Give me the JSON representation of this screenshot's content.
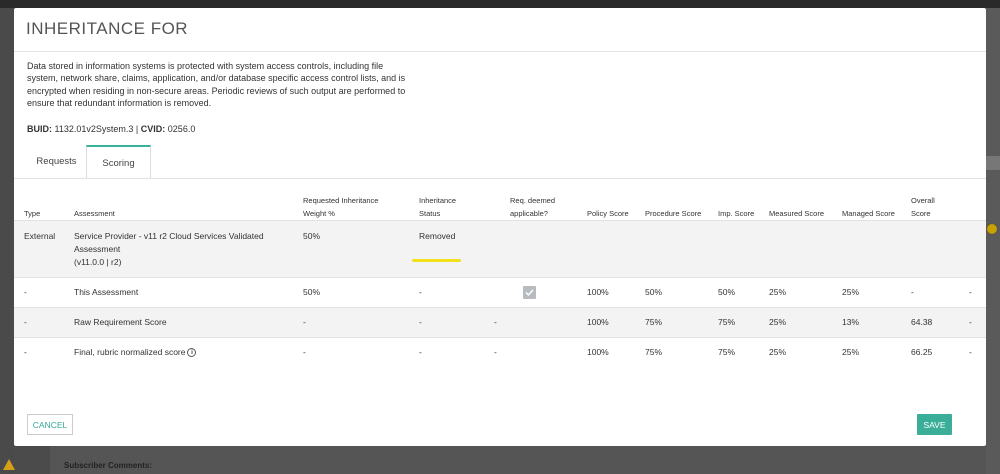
{
  "modal": {
    "title": "INHERITANCE FOR",
    "description": "Data stored in information systems is protected with system access controls, including file system, network share, claims, application, and/or database specific access control lists, and is encrypted when residing in non-secure areas. Periodic reviews of such output are performed to ensure that redundant information is removed.",
    "buid_label": "BUID:",
    "buid_value": "1132.01v2System.3",
    "separator": "|",
    "cvid_label": "CVID:",
    "cvid_value": "0256.0"
  },
  "tabs": [
    {
      "label": "Requests",
      "active": false
    },
    {
      "label": "Scoring",
      "active": true
    }
  ],
  "table": {
    "headers": {
      "type": "Type",
      "assessment": "Assessment",
      "weight_line1": "Requested Inheritance",
      "weight_line2": "Weight %",
      "status_line1": "Inheritance",
      "status_line2": "Status",
      "applicable_line1": "Req. deemed",
      "applicable_line2": "applicable?",
      "policy": "Policy Score",
      "procedure": "Procedure Score",
      "imp": "Imp. Score",
      "measured": "Measured Score",
      "managed": "Managed Score",
      "overall_line1": "Overall",
      "overall_line2": "Score"
    },
    "external_row": {
      "type": "External",
      "assessment_line1": "Service Provider - v11 r2 Cloud Services Validated",
      "assessment_line2": "Assessment",
      "assessment_line3": "(v11.0.0 | r2)",
      "weight": "50%",
      "status": "Removed"
    },
    "this_row": {
      "type": "-",
      "assessment": "This Assessment",
      "weight": "50%",
      "status": "-",
      "applicable_checked": true,
      "policy": "100%",
      "procedure": "50%",
      "imp": "50%",
      "measured": "25%",
      "managed": "25%",
      "overall": "-",
      "extra": "-"
    },
    "raw_row": {
      "type": "-",
      "assessment": "Raw Requirement Score",
      "weight": "-",
      "status": "-",
      "applicable": "-",
      "policy": "100%",
      "procedure": "75%",
      "imp": "75%",
      "measured": "25%",
      "managed": "13%",
      "overall": "64.38",
      "extra": "-"
    },
    "final_row": {
      "type": "-",
      "assessment": "Final, rubric normalized score",
      "weight": "-",
      "status": "-",
      "applicable": "-",
      "policy": "100%",
      "procedure": "75%",
      "imp": "75%",
      "measured": "25%",
      "managed": "25%",
      "overall": "66.25",
      "extra": "-"
    }
  },
  "buttons": {
    "cancel": "CANCEL",
    "save": "SAVE"
  },
  "background": {
    "comments_label": "Subscriber Comments:"
  },
  "colors": {
    "accent": "#3aae98",
    "highlight": "#f2e01c"
  }
}
